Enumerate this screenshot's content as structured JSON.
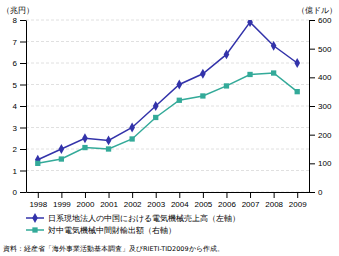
{
  "chart_data": {
    "type": "line",
    "ylabel": "（兆円）",
    "y2label": "（億ドル）",
    "annotations": [
      "資料：経産省「海外事業活動基本調査」及びRIETI-TID2009から作成。"
    ],
    "x": [
      1998,
      1999,
      2000,
      2001,
      2002,
      2003,
      2004,
      2005,
      2006,
      2007,
      2008,
      2009
    ],
    "xlim": [
      1997.5,
      2009.5
    ],
    "xticks": [
      1998,
      1999,
      2000,
      2001,
      2002,
      2003,
      2004,
      2005,
      2006,
      2007,
      2008,
      2009
    ],
    "ylim": [
      0,
      8
    ],
    "yticks": [
      0,
      1,
      2,
      3,
      4,
      5,
      6,
      7,
      8
    ],
    "y2lim": [
      0,
      600
    ],
    "y2ticks": [
      0,
      100,
      200,
      300,
      400,
      500,
      600
    ],
    "grid": true,
    "legend": "bottom",
    "series": [
      {
        "name": "日系現地法人の中国における電気機械売上高（左軸）",
        "color": "#3333aa",
        "marker": "diamond",
        "values": [
          1.5,
          2.0,
          2.5,
          2.4,
          3.0,
          4.0,
          5.0,
          5.5,
          6.4,
          7.9,
          6.8,
          6.0
        ]
      },
      {
        "name": "対中電気機械中間財輸出額（右軸）",
        "color": "#33aa99",
        "marker": "square",
        "axis": "y2",
        "values": [
          100,
          115,
          155,
          150,
          185,
          260,
          320,
          335,
          370,
          410,
          415,
          350
        ]
      }
    ]
  }
}
